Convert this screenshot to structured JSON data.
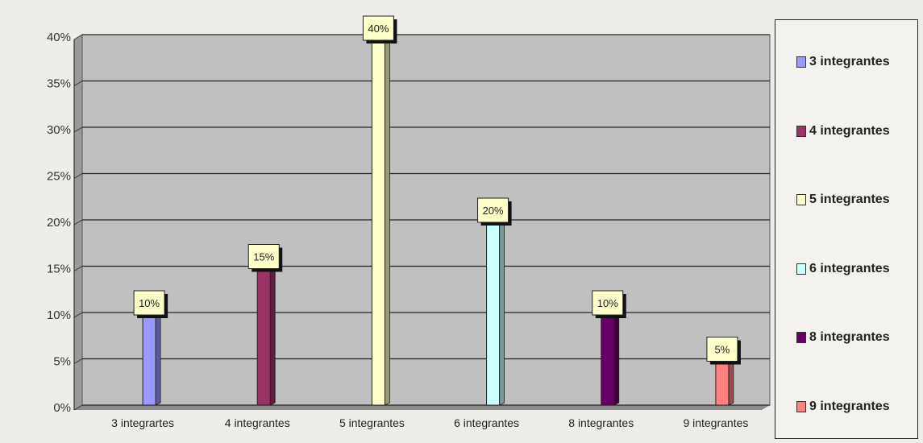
{
  "chart_data": {
    "type": "bar",
    "categories": [
      "3 integrartes",
      "4 integrantes",
      "5 integrantes",
      "6 integrantes",
      "8 integrantes",
      "9 integrantes"
    ],
    "values": [
      10,
      15,
      40,
      20,
      10,
      5
    ],
    "data_labels": [
      "10%",
      "15%",
      "40%",
      "20%",
      "10%",
      "5%"
    ],
    "y_ticks": [
      "0%",
      "5%",
      "10%",
      "15%",
      "20%",
      "25%",
      "30%",
      "35%",
      "40%"
    ],
    "ylim": [
      0,
      40
    ],
    "grid": true,
    "legend_position": "right",
    "legend": [
      "3 integrantes",
      "4 integrantes",
      "5 integrantes",
      "6 integrantes",
      "8 integrantes",
      "9 integrantes"
    ],
    "colors": [
      "#9999ff",
      "#993366",
      "#ffffcc",
      "#ccffff",
      "#660066",
      "#ff8080"
    ],
    "plot_background": "#c0c0c0"
  }
}
